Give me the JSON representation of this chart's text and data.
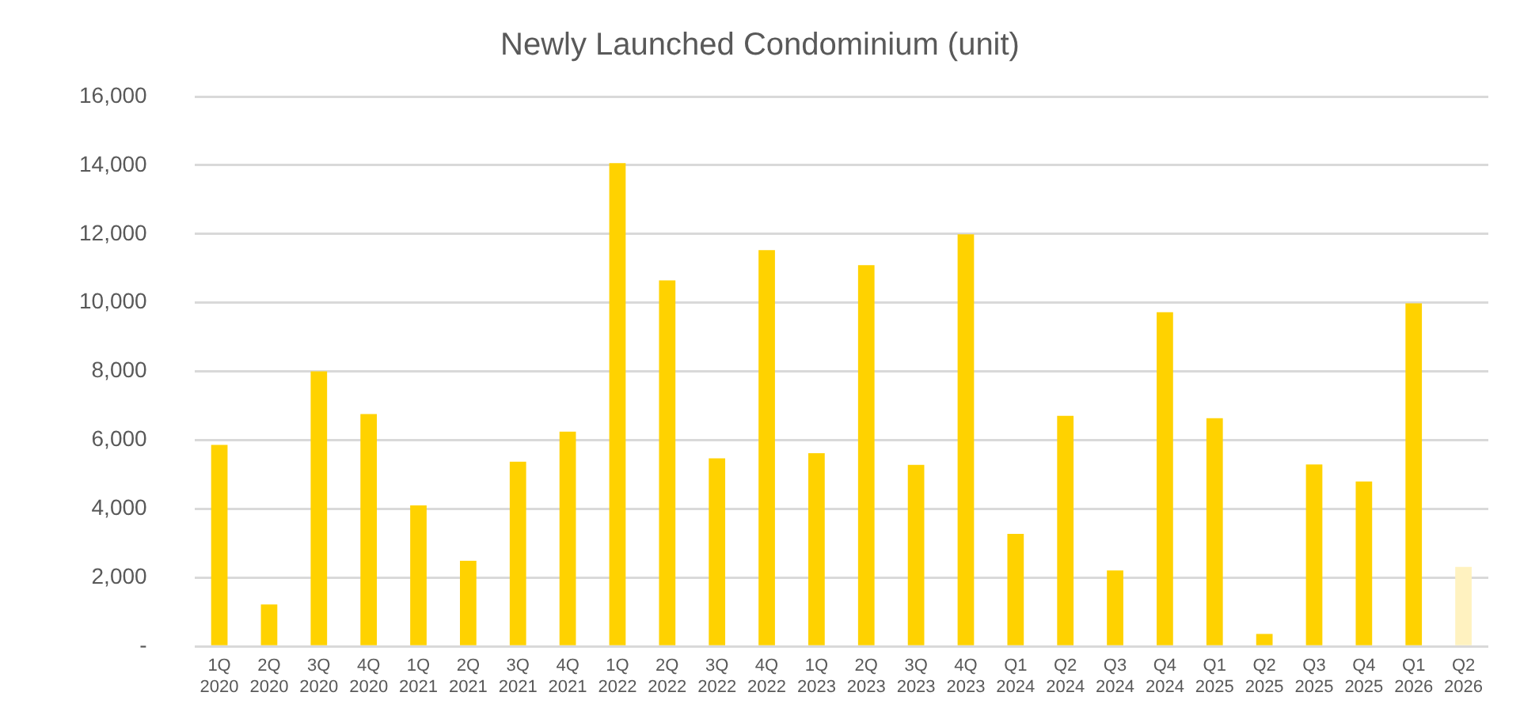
{
  "chart_data": {
    "type": "bar",
    "title": "Newly Launched Condominium (unit)",
    "categories": [
      "1Q 2020",
      "2Q 2020",
      "3Q 2020",
      "4Q 2020",
      "1Q 2021",
      "2Q 2021",
      "3Q 2021",
      "4Q 2021",
      "1Q 2022",
      "2Q 2022",
      "3Q 2022",
      "4Q 2022",
      "1Q 2023",
      "2Q 2023",
      "3Q 2023",
      "4Q 2023",
      "Q1 2024",
      "Q2 2024",
      "Q3 2024",
      "Q4 2024",
      "Q1 2025",
      "Q2 2025",
      "Q3 2025",
      "Q4 2025",
      "Q1 2026",
      "Q2 2026"
    ],
    "values": [
      5860,
      1220,
      8000,
      6760,
      4100,
      2490,
      5370,
      6250,
      14060,
      10650,
      5470,
      11530,
      5620,
      11090,
      5280,
      11990,
      3270,
      6710,
      2210,
      9720,
      6640,
      360,
      5290,
      4800,
      9980,
      2310
    ],
    "colors": [
      "#ffd200",
      "#ffd200",
      "#ffd200",
      "#ffd200",
      "#ffd200",
      "#ffd200",
      "#ffd200",
      "#ffd200",
      "#ffd200",
      "#ffd200",
      "#ffd200",
      "#ffd200",
      "#ffd200",
      "#ffd200",
      "#ffd200",
      "#ffd200",
      "#ffd200",
      "#ffd200",
      "#ffd200",
      "#ffd200",
      "#ffd200",
      "#ffd200",
      "#ffd200",
      "#ffd200",
      "#ffd200",
      "#fff2c0"
    ],
    "ylim": [
      0,
      16000
    ],
    "yticks": [
      {
        "value": 0,
        "label": "-"
      },
      {
        "value": 2000,
        "label": "2,000"
      },
      {
        "value": 4000,
        "label": "4,000"
      },
      {
        "value": 6000,
        "label": "6,000"
      },
      {
        "value": 8000,
        "label": "8,000"
      },
      {
        "value": 10000,
        "label": "10,000"
      },
      {
        "value": 12000,
        "label": "12,000"
      },
      {
        "value": 14000,
        "label": "14,000"
      },
      {
        "value": 16000,
        "label": "16,000"
      }
    ],
    "grid": "y"
  }
}
